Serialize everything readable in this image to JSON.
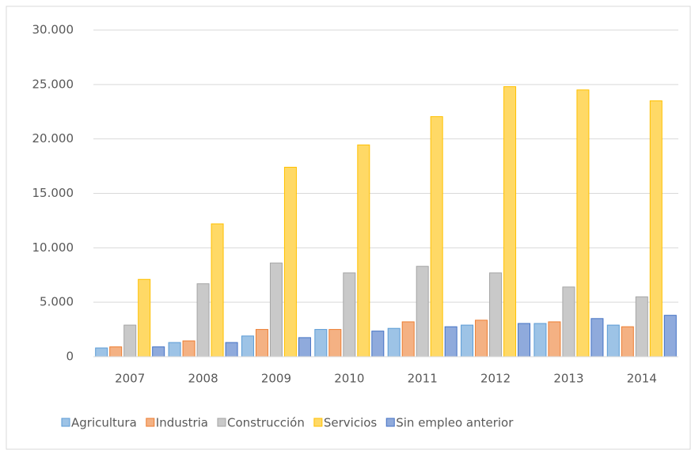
{
  "chart_data": {
    "type": "bar",
    "categories": [
      "2007",
      "2008",
      "2009",
      "2010",
      "2011",
      "2012",
      "2013",
      "2014"
    ],
    "series": [
      {
        "name": "Agricultura",
        "color": "#9dc3e6",
        "values": [
          800,
          1300,
          1900,
          2500,
          2600,
          2900,
          3050,
          2900
        ]
      },
      {
        "name": "Industria",
        "color": "#f4b183",
        "values": [
          900,
          1450,
          2500,
          2500,
          3200,
          3350,
          3200,
          2750
        ]
      },
      {
        "name": "Construcción",
        "color": "#c9c9c9",
        "values": [
          2900,
          6700,
          8600,
          7700,
          8300,
          7700,
          6400,
          5500
        ]
      },
      {
        "name": "Servicios",
        "color": "#ffd966",
        "values": [
          7100,
          12200,
          17400,
          19450,
          22050,
          24800,
          24500,
          23500
        ]
      },
      {
        "name": "Sin empleo anterior",
        "color": "#8faadc",
        "values": [
          900,
          1300,
          1750,
          2350,
          2750,
          3050,
          3500,
          3800
        ]
      }
    ],
    "ylim": [
      0,
      30000
    ],
    "yticks": [
      0,
      {
        "value": 5000,
        "label": "5.000"
      },
      {
        "value": 10000,
        "label": "10.000"
      },
      {
        "value": 15000,
        "label": "15.000"
      },
      {
        "value": 20000,
        "label": "20.000"
      },
      {
        "value": 25000,
        "label": "25.000"
      },
      {
        "value": 30000,
        "label": "30.000"
      }
    ],
    "grid": true,
    "legend": "bottom"
  }
}
